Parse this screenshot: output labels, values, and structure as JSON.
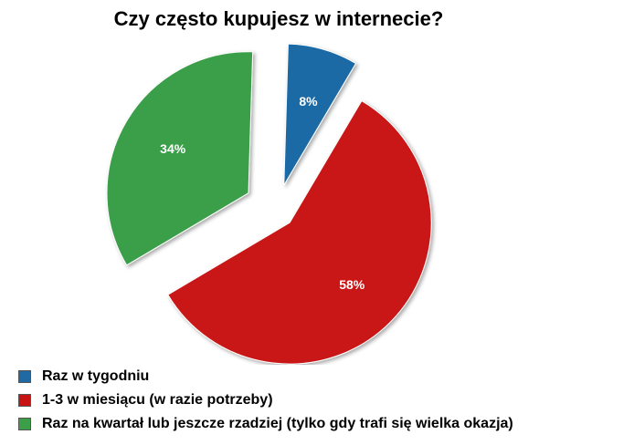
{
  "chart_data": {
    "type": "pie",
    "title": "Czy często kupujesz w internecie?",
    "categories": [
      "Raz w tygodniu",
      "1-3 w miesiącu (w razie potrzeby)",
      "Raz na kwartał lub jeszcze rzadziej (tylko gdy trafi się wielka okazja)"
    ],
    "values": [
      8,
      58,
      34
    ],
    "value_labels": [
      "8%",
      "58%",
      "34%"
    ],
    "colors": [
      "#1f6aa5",
      "#c91313",
      "#3a9f48"
    ],
    "exploded": true,
    "legend_position": "bottom-left"
  }
}
